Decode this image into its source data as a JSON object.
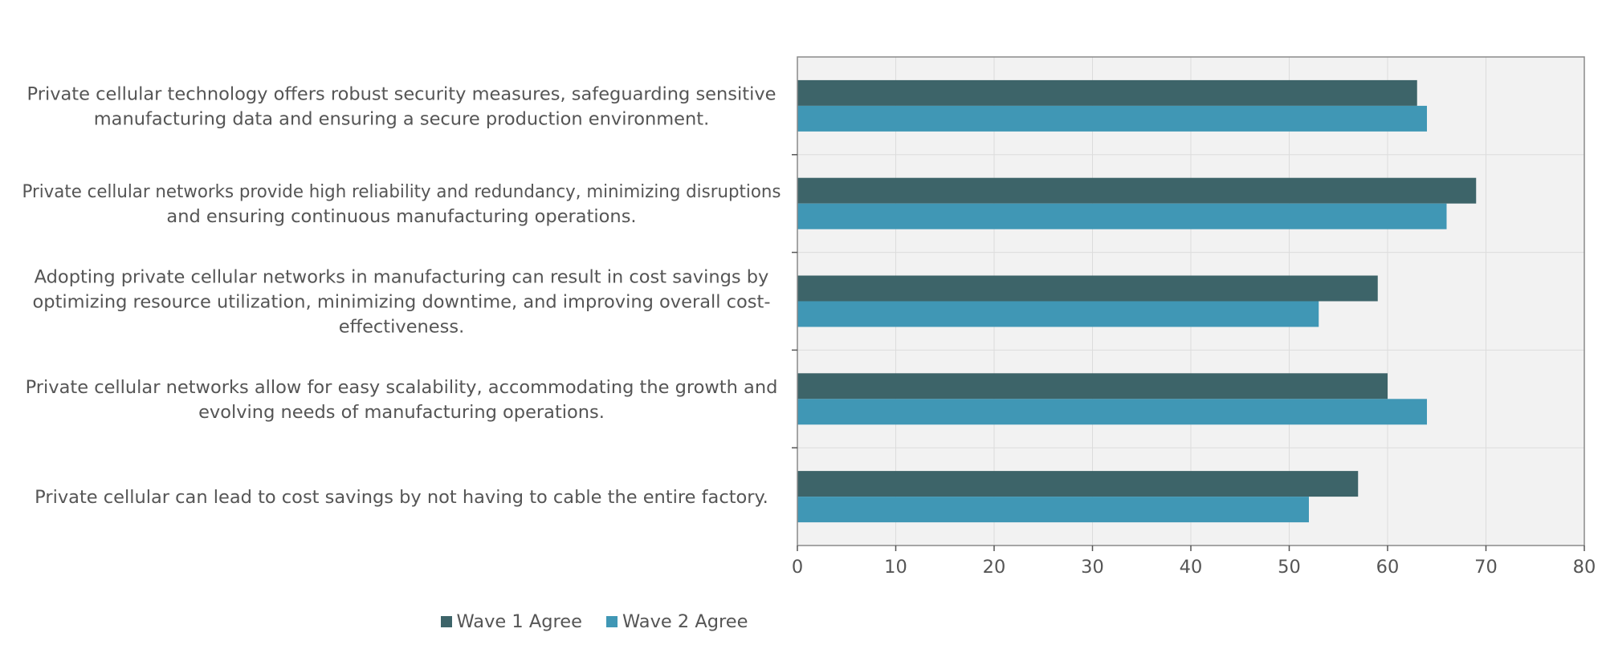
{
  "chart_data": {
    "type": "bar",
    "orientation": "horizontal",
    "categories": [
      [
        "Private cellular technology offers robust security measures, safeguarding sensitive",
        "manufacturing data and ensuring a secure production environment."
      ],
      [
        "Private cellular networks provide high reliability and redundancy, minimizing disruptions",
        "and ensuring continuous manufacturing operations."
      ],
      [
        "Adopting private cellular networks in manufacturing can result in cost savings by",
        "optimizing resource utilization, minimizing downtime, and improving overall cost-",
        "effectiveness."
      ],
      [
        "Private cellular networks allow for easy scalability, accommodating the growth and",
        "evolving needs of manufacturing operations."
      ],
      [
        "Private cellular can lead to cost savings by not having to cable the entire factory."
      ]
    ],
    "series": [
      {
        "name": "Wave 1 Agree",
        "color": "#3d6469",
        "values": [
          63,
          69,
          59,
          60,
          57
        ]
      },
      {
        "name": "Wave 2 Agree",
        "color": "#4097b5",
        "values": [
          64,
          66,
          53,
          64,
          52
        ]
      }
    ],
    "xlim": [
      0,
      80
    ],
    "xticks": [
      0,
      10,
      20,
      30,
      40,
      50,
      60,
      70,
      80
    ],
    "grid": true,
    "plot_background": "#f2f2f2",
    "gridline_color": "#dcdcdc",
    "legend_position": "bottom"
  }
}
